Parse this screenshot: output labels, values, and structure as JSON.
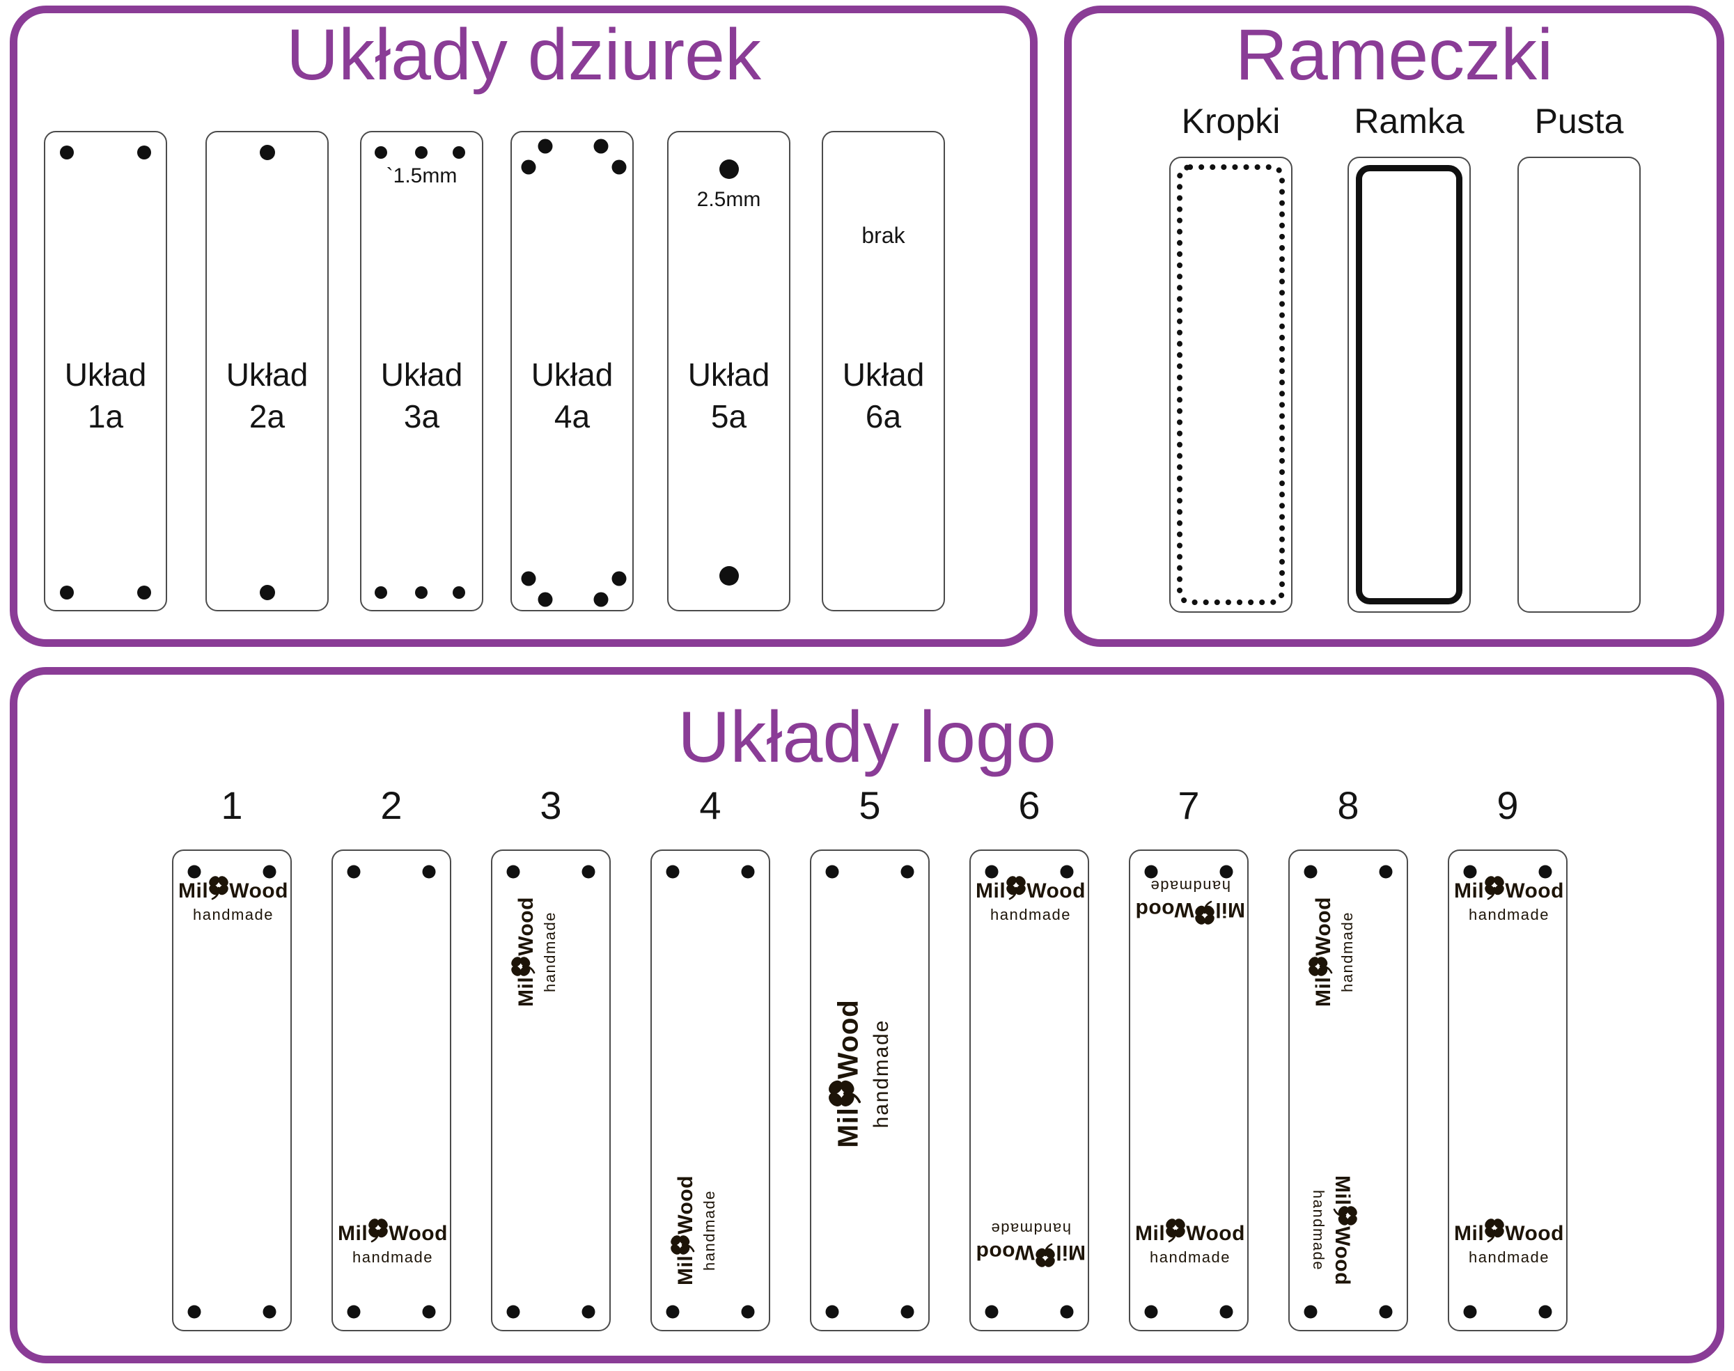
{
  "colors": {
    "accent_purple": "#8a3c96",
    "ink": "#141414",
    "hole_black": "#101010"
  },
  "sections": {
    "dziurki": {
      "title": "Układy dziurek",
      "tags": [
        {
          "name": "Układ",
          "variant": "1a",
          "holes": "two-top-two-bottom",
          "note": ""
        },
        {
          "name": "Układ",
          "variant": "2a",
          "holes": "one-top-one-bottom",
          "note": ""
        },
        {
          "name": "Układ",
          "variant": "3a",
          "holes": "three-top-three-bottom",
          "note": "`1.5mm"
        },
        {
          "name": "Układ",
          "variant": "4a",
          "holes": "four-top-four-bottom-staggered",
          "note": ""
        },
        {
          "name": "Układ",
          "variant": "5a",
          "holes": "one-large-top-one-large-bottom",
          "note": "2.5mm"
        },
        {
          "name": "Układ",
          "variant": "6a",
          "holes": "none",
          "note": "brak"
        }
      ]
    },
    "rameczki": {
      "title": "Rameczki",
      "options": [
        {
          "label": "Kropki",
          "frame": "dots"
        },
        {
          "label": "Ramka",
          "frame": "solid"
        },
        {
          "label": "Pusta",
          "frame": "none"
        }
      ]
    },
    "logo_layouts": {
      "title": "Układy logo",
      "logo": {
        "word1": "Mil",
        "word2": "Wood",
        "subtitle": "handmade"
      },
      "tags": [
        {
          "number": "1",
          "placements": [
            {
              "pos": "top",
              "rot": 0
            }
          ]
        },
        {
          "number": "2",
          "placements": [
            {
              "pos": "bottom",
              "rot": 0
            }
          ]
        },
        {
          "number": "3",
          "placements": [
            {
              "pos": "top-vertical",
              "rot": -90
            }
          ]
        },
        {
          "number": "4",
          "placements": [
            {
              "pos": "bottom-vertical",
              "rot": -90
            }
          ]
        },
        {
          "number": "5",
          "placements": [
            {
              "pos": "center-vertical",
              "rot": -90,
              "size": "large"
            }
          ]
        },
        {
          "number": "6",
          "placements": [
            {
              "pos": "top",
              "rot": 0
            },
            {
              "pos": "bottom",
              "rot": 180
            }
          ]
        },
        {
          "number": "7",
          "placements": [
            {
              "pos": "top",
              "rot": 180
            },
            {
              "pos": "bottom",
              "rot": 0
            }
          ]
        },
        {
          "number": "8",
          "placements": [
            {
              "pos": "top-vertical",
              "rot": -90
            },
            {
              "pos": "bottom-vertical",
              "rot": 90
            }
          ]
        },
        {
          "number": "9",
          "placements": [
            {
              "pos": "top",
              "rot": 0
            },
            {
              "pos": "bottom",
              "rot": 0
            }
          ]
        }
      ]
    }
  }
}
